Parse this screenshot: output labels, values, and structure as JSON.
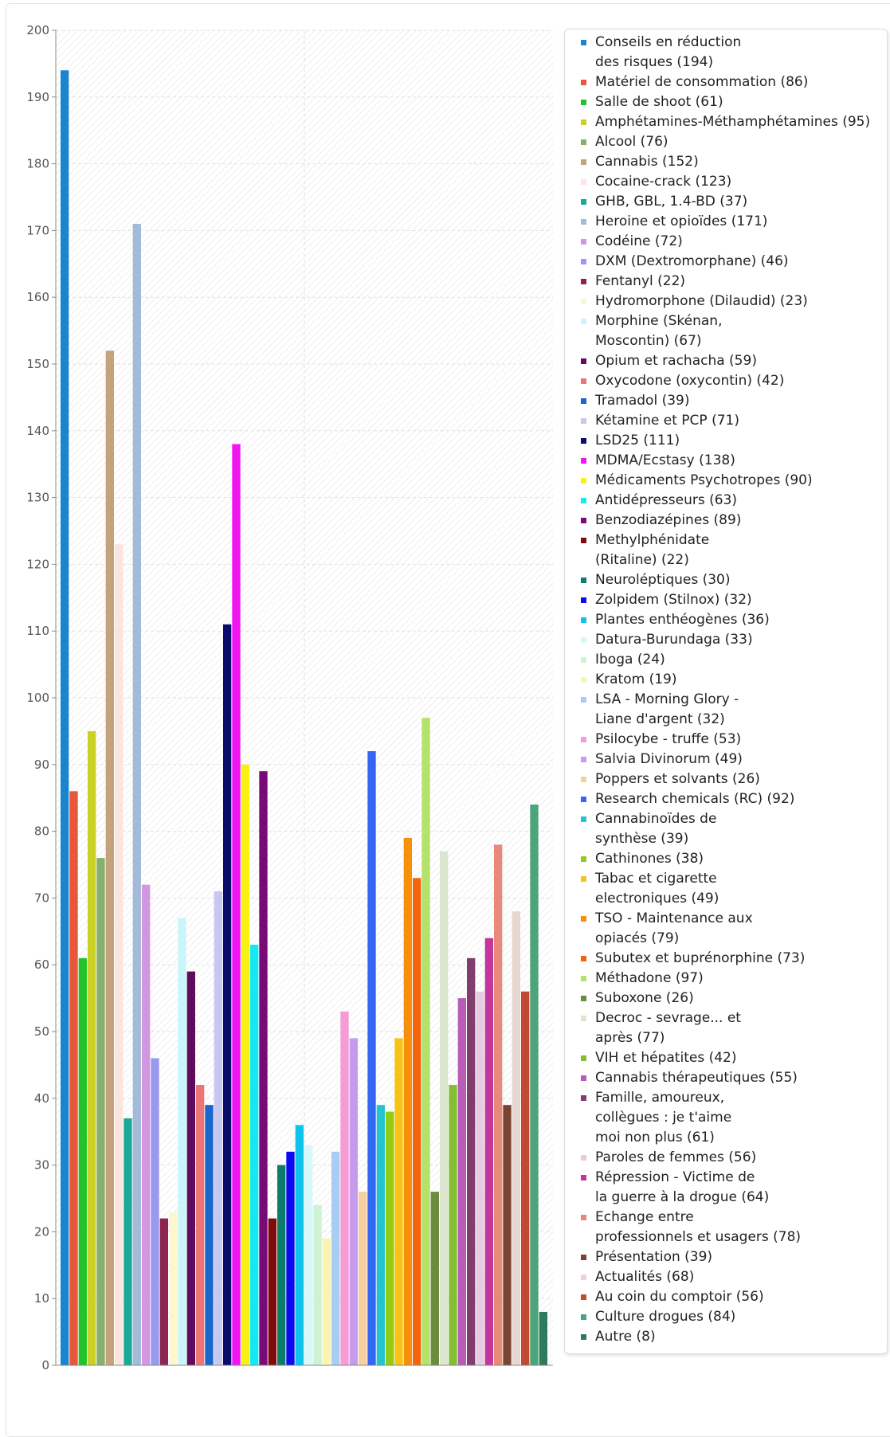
{
  "chart_data": {
    "type": "bar",
    "ylim": [
      0,
      200
    ],
    "yticks": [
      0,
      10,
      20,
      30,
      40,
      50,
      60,
      70,
      80,
      90,
      100,
      110,
      120,
      130,
      140,
      150,
      160,
      170,
      180,
      190,
      200
    ],
    "grid": true,
    "legend_position": "right",
    "series": [
      {
        "name": "Conseils en réduction\ndes risques (194)",
        "value": 194,
        "color": "#1a85cc"
      },
      {
        "name": "Matériel de consommation (86)",
        "value": 86,
        "color": "#e8573a"
      },
      {
        "name": "Salle de shoot (61)",
        "value": 61,
        "color": "#22c42c"
      },
      {
        "name": "Amphétamines-Méthamphétamines (95)",
        "value": 95,
        "color": "#cbd124"
      },
      {
        "name": "Alcool (76)",
        "value": 76,
        "color": "#88b06d"
      },
      {
        "name": "Cannabis (152)",
        "value": 152,
        "color": "#c4a27b"
      },
      {
        "name": "Cocaine-crack (123)",
        "value": 123,
        "color": "#fbe6df"
      },
      {
        "name": "GHB, GBL, 1.4-BD (37)",
        "value": 37,
        "color": "#1aa89a"
      },
      {
        "name": "Heroine et opioïdes (171)",
        "value": 171,
        "color": "#a3bad8"
      },
      {
        "name": "Codéine (72)",
        "value": 72,
        "color": "#d396e0"
      },
      {
        "name": "DXM (Dextromorphane) (46)",
        "value": 46,
        "color": "#9999f0"
      },
      {
        "name": "Fentanyl (22)",
        "value": 22,
        "color": "#8c2550"
      },
      {
        "name": "Hydromorphone (Dilaudid) (23)",
        "value": 23,
        "color": "#fdf6cf"
      },
      {
        "name": "Morphine (Skénan,\nMoscontin) (67)",
        "value": 67,
        "color": "#c9f6fa"
      },
      {
        "name": "Opium et rachacha (59)",
        "value": 59,
        "color": "#5e0d5e"
      },
      {
        "name": "Oxycodone (oxycontin) (42)",
        "value": 42,
        "color": "#ec7575"
      },
      {
        "name": "Tramadol (39)",
        "value": 39,
        "color": "#1a66cc"
      },
      {
        "name": "Kétamine et PCP (71)",
        "value": 71,
        "color": "#c6c8f2"
      },
      {
        "name": "LSD25 (111)",
        "value": 111,
        "color": "#0b0b6e"
      },
      {
        "name": "MDMA/Ecstasy (138)",
        "value": 138,
        "color": "#f214f2"
      },
      {
        "name": "Médicaments Psychotropes (90)",
        "value": 90,
        "color": "#f7f214"
      },
      {
        "name": "Antidépresseurs (63)",
        "value": 63,
        "color": "#14e8f2"
      },
      {
        "name": "Benzodiazépines (89)",
        "value": 89,
        "color": "#780b78"
      },
      {
        "name": "Methylphénidate\n(Ritaline) (22)",
        "value": 22,
        "color": "#800b0b"
      },
      {
        "name": "Neuroléptiques (30)",
        "value": 30,
        "color": "#0d7d6b"
      },
      {
        "name": "Zolpidem (Stilnox) (32)",
        "value": 32,
        "color": "#0b0bf0"
      },
      {
        "name": "Plantes enthéogènes (36)",
        "value": 36,
        "color": "#0fc4ec"
      },
      {
        "name": "Datura-Burundaga (33)",
        "value": 33,
        "color": "#d6f8fb"
      },
      {
        "name": "Iboga (24)",
        "value": 24,
        "color": "#cdf2d4"
      },
      {
        "name": "Kratom (19)",
        "value": 19,
        "color": "#f8f5b2"
      },
      {
        "name": "LSA - Morning Glory -\nLiane d'argent (32)",
        "value": 32,
        "color": "#a8cdf5"
      },
      {
        "name": "Psilocybe - truffe (53)",
        "value": 53,
        "color": "#f59bd5"
      },
      {
        "name": "Salvia Divinorum (49)",
        "value": 49,
        "color": "#c69bec"
      },
      {
        "name": "Poppers et solvants (26)",
        "value": 26,
        "color": "#f8cf9e"
      },
      {
        "name": "Research chemicals (RC) (92)",
        "value": 92,
        "color": "#3366f2"
      },
      {
        "name": "Cannabinoïdes de\nsynthèse (39)",
        "value": 39,
        "color": "#22c4cf"
      },
      {
        "name": "Cathinones (38)",
        "value": 38,
        "color": "#94c914"
      },
      {
        "name": "Tabac et cigarette\nelectroniques (49)",
        "value": 49,
        "color": "#f7c314"
      },
      {
        "name": "TSO - Maintenance aux\nopiacés (79)",
        "value": 79,
        "color": "#f78f0b"
      },
      {
        "name": "Subutex et buprénorphine (73)",
        "value": 73,
        "color": "#f2650b"
      },
      {
        "name": "Méthadone (97)",
        "value": 97,
        "color": "#b4e26a"
      },
      {
        "name": "Suboxone (26)",
        "value": 26,
        "color": "#6b8c3d"
      },
      {
        "name": "Decroc - sevrage... et\naprès (77)",
        "value": 77,
        "color": "#dce5cf"
      },
      {
        "name": "VIH et hépatites (42)",
        "value": 42,
        "color": "#84bf33"
      },
      {
        "name": "Cannabis thérapeutiques (55)",
        "value": 55,
        "color": "#b85cb8"
      },
      {
        "name": "Famille, amoureux,\ncollègues : je t'aime\nmoi non plus (61)",
        "value": 61,
        "color": "#803d6e"
      },
      {
        "name": "Paroles de femmes (56)",
        "value": 56,
        "color": "#e6cce3"
      },
      {
        "name": "Répression - Victime de\nla guerre à la drogue (64)",
        "value": 64,
        "color": "#c2379a"
      },
      {
        "name": "Echange entre\nprofessionnels et usagers (78)",
        "value": 78,
        "color": "#e8897a"
      },
      {
        "name": "Présentation (39)",
        "value": 39,
        "color": "#7a4433"
      },
      {
        "name": "Actualités (68)",
        "value": 68,
        "color": "#e8d6d0"
      },
      {
        "name": "Au coin du comptoir (56)",
        "value": 56,
        "color": "#c24a33"
      },
      {
        "name": "Culture drogues (84)",
        "value": 84,
        "color": "#4da37a"
      },
      {
        "name": "Autre (8)",
        "value": 8,
        "color": "#2e7a5c"
      }
    ]
  }
}
